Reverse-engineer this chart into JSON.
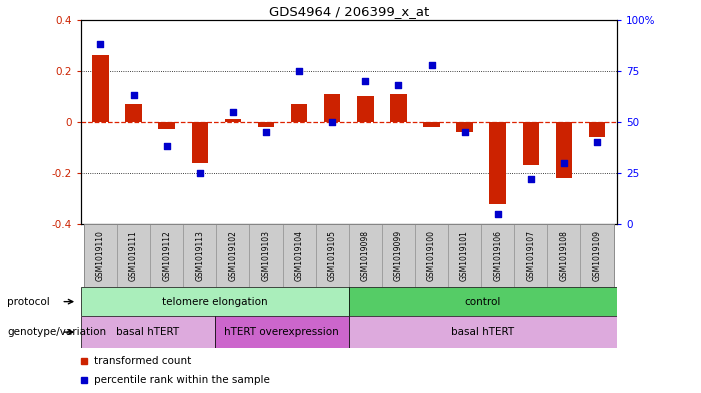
{
  "title": "GDS4964 / 206399_x_at",
  "samples": [
    "GSM1019110",
    "GSM1019111",
    "GSM1019112",
    "GSM1019113",
    "GSM1019102",
    "GSM1019103",
    "GSM1019104",
    "GSM1019105",
    "GSM1019098",
    "GSM1019099",
    "GSM1019100",
    "GSM1019101",
    "GSM1019106",
    "GSM1019107",
    "GSM1019108",
    "GSM1019109"
  ],
  "bar_values": [
    0.26,
    0.07,
    -0.03,
    -0.16,
    0.01,
    -0.02,
    0.07,
    0.11,
    0.1,
    0.11,
    -0.02,
    -0.04,
    -0.32,
    -0.17,
    -0.22,
    -0.06
  ],
  "dot_values": [
    88,
    63,
    38,
    25,
    55,
    45,
    75,
    50,
    70,
    68,
    78,
    45,
    5,
    22,
    30,
    40
  ],
  "bar_color": "#cc2200",
  "dot_color": "#0000cc",
  "ylim_left": [
    -0.4,
    0.4
  ],
  "ylim_right": [
    0,
    100
  ],
  "yticks_left": [
    -0.4,
    -0.2,
    0.0,
    0.2,
    0.4
  ],
  "yticks_right": [
    0,
    25,
    50,
    75,
    100
  ],
  "ytick_labels_right": [
    "0",
    "25",
    "50",
    "75",
    "100%"
  ],
  "zero_line_color": "#dd2200",
  "grid_color": "#333333",
  "protocol_labels": [
    {
      "label": "telomere elongation",
      "start": 0,
      "end": 7,
      "color": "#aaeebb"
    },
    {
      "label": "control",
      "start": 8,
      "end": 15,
      "color": "#55cc66"
    }
  ],
  "genotype_labels": [
    {
      "label": "basal hTERT",
      "start": 0,
      "end": 3,
      "color": "#ddaadd"
    },
    {
      "label": "hTERT overexpression",
      "start": 4,
      "end": 7,
      "color": "#cc66cc"
    },
    {
      "label": "basal hTERT",
      "start": 8,
      "end": 15,
      "color": "#ddaadd"
    }
  ],
  "legend_items": [
    {
      "label": "transformed count",
      "color": "#cc2200"
    },
    {
      "label": "percentile rank within the sample",
      "color": "#0000cc"
    }
  ],
  "protocol_row_label": "protocol",
  "genotype_row_label": "genotype/variation",
  "bar_width": 0.5,
  "tick_label_size": 7,
  "bg_color": "#ffffff"
}
